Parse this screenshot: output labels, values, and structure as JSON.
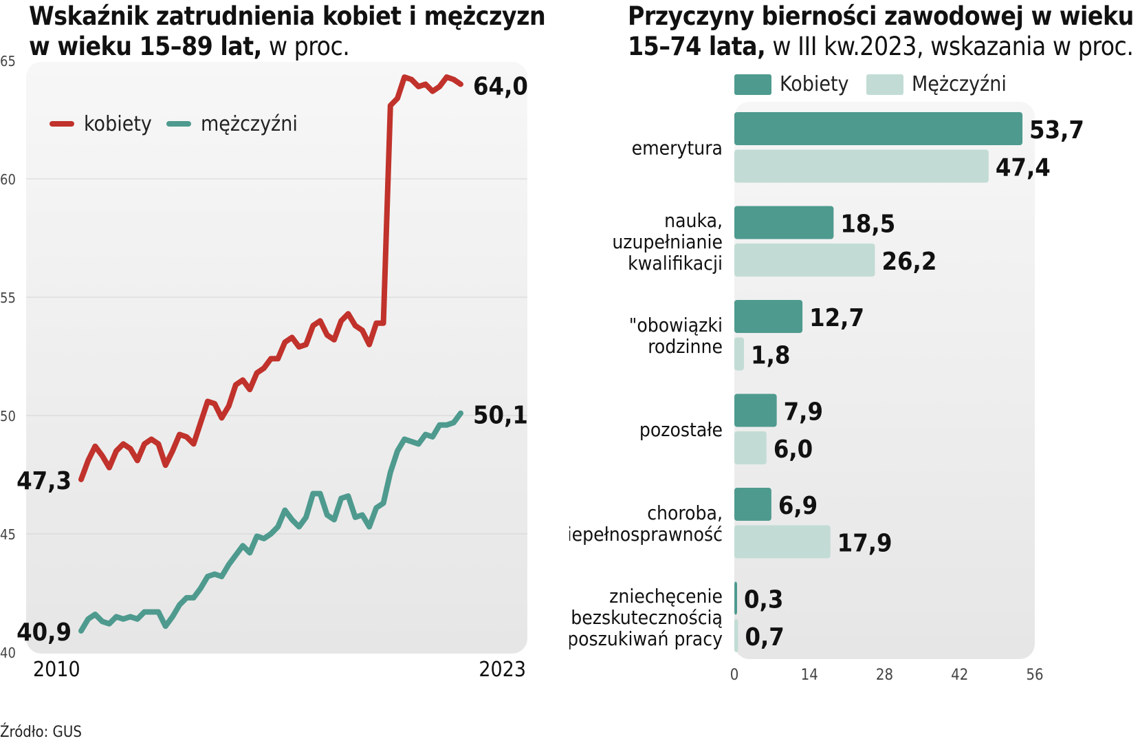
{
  "left_chart": {
    "title_bold_1": "Wskaźnik zatrudnienia kobiet i mężczyzn",
    "title_bold_2": "w wieku 15–89 lat,",
    "title_normal": " w proc.",
    "chart_data": {
      "type": "line",
      "x_start": "2010",
      "x_end": "2023",
      "ylim": [
        40,
        65
      ],
      "yticks": [
        "40",
        "45",
        "50",
        "55",
        "60",
        "65"
      ],
      "grid": true,
      "legend_position": "top-left",
      "series": [
        {
          "name": "kobiety",
          "color": "#c0322b",
          "start_label": "47,3",
          "end_label": "64,0",
          "values": [
            47.3,
            48.1,
            48.7,
            48.3,
            47.8,
            48.5,
            48.8,
            48.6,
            48.1,
            48.8,
            49.0,
            48.8,
            47.9,
            48.5,
            49.2,
            49.1,
            48.8,
            49.7,
            50.6,
            50.5,
            49.9,
            50.4,
            51.3,
            51.5,
            51.1,
            51.8,
            52.0,
            52.4,
            52.4,
            53.1,
            53.3,
            52.9,
            53.0,
            53.8,
            54.0,
            53.4,
            53.2,
            54.0,
            54.3,
            53.8,
            53.6,
            53.0,
            53.9,
            53.9,
            63.1,
            63.4,
            64.3,
            64.2,
            63.9,
            64.0,
            63.7,
            63.9,
            64.3,
            64.2,
            64.0
          ]
        },
        {
          "name": "mężczyźni",
          "color": "#4e9a8e",
          "start_label": "40,9",
          "end_label": "50,1",
          "values": [
            40.9,
            41.4,
            41.6,
            41.3,
            41.2,
            41.5,
            41.4,
            41.5,
            41.4,
            41.7,
            41.7,
            41.7,
            41.1,
            41.5,
            42.0,
            42.3,
            42.3,
            42.7,
            43.2,
            43.3,
            43.2,
            43.7,
            44.1,
            44.5,
            44.2,
            44.9,
            44.8,
            45.0,
            45.3,
            46.0,
            45.6,
            45.3,
            45.7,
            46.7,
            46.7,
            45.8,
            45.6,
            46.5,
            46.6,
            45.7,
            45.8,
            45.3,
            46.1,
            46.3,
            47.6,
            48.5,
            49.0,
            48.9,
            48.8,
            49.2,
            49.1,
            49.6,
            49.6,
            49.7,
            50.1
          ]
        }
      ]
    }
  },
  "right_chart": {
    "title_bold_1": "Przyczyny bierności zawodowej  w wieku",
    "title_bold_2": "15–74 lata,",
    "title_normal": " w III kw.2023, wskazania w proc.",
    "chart_data": {
      "type": "bar",
      "orientation": "horizontal",
      "xlim": [
        0,
        56
      ],
      "xticks": [
        "0",
        "14",
        "28",
        "42",
        "56"
      ],
      "legend_position": "top",
      "categories": [
        [
          "emerytura"
        ],
        [
          "nauka,",
          "uzupełnianie",
          "kwalifikacji"
        ],
        [
          "\"obowiązki",
          "rodzinne"
        ],
        [
          "pozostałe"
        ],
        [
          "choroba,",
          "niepełnosprawność"
        ],
        [
          "zniechęcenie",
          "bezskutecznością",
          "poszukiwań pracy"
        ]
      ],
      "series": [
        {
          "name": "Kobiety",
          "color": "#4e9a8e",
          "values": [
            53.7,
            18.5,
            12.7,
            7.9,
            6.9,
            0.3
          ],
          "labels": [
            "53,7",
            "18,5",
            "12,7",
            "7,9",
            "6,9",
            "0,3"
          ]
        },
        {
          "name": "Mężczyźni",
          "color": "#c2dcd5",
          "values": [
            47.4,
            26.2,
            1.8,
            6.0,
            17.9,
            0.7
          ],
          "labels": [
            "47,4",
            "26,2",
            "1,8",
            "6,0",
            "17,9",
            "0,7"
          ]
        }
      ]
    }
  },
  "source": "Źródło: GUS"
}
